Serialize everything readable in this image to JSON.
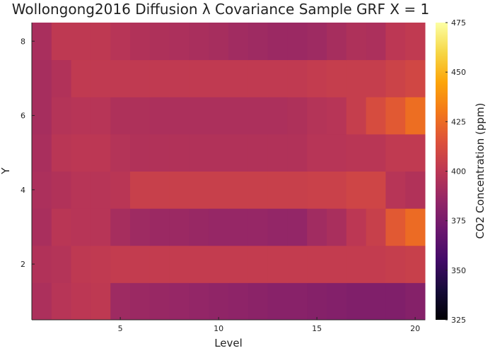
{
  "chart_data": {
    "type": "heatmap",
    "title": "Wollongong2016 Diffusion λ Covariance Sample GRF X = 1",
    "xlabel": "Level",
    "ylabel": "Y",
    "colorbar_label": "CO2 Concentration (ppm)",
    "colormap": "inferno",
    "color_range": [
      325,
      475
    ],
    "colorbar_ticks": [
      325,
      350,
      375,
      400,
      425,
      450,
      475
    ],
    "x_ticks": [
      5,
      10,
      15,
      20
    ],
    "y_ticks": [
      2,
      4,
      6,
      8
    ],
    "x": [
      1,
      2,
      3,
      4,
      5,
      6,
      7,
      8,
      9,
      10,
      11,
      12,
      13,
      14,
      15,
      16,
      17,
      18,
      19,
      20
    ],
    "y": [
      1,
      2,
      3,
      4,
      5,
      6,
      7,
      8
    ],
    "z": [
      [
        394,
        398,
        400,
        401,
        389,
        388,
        387,
        386,
        385,
        384,
        383,
        382,
        381,
        381,
        380,
        379,
        378,
        378,
        378,
        380
      ],
      [
        396,
        397,
        401,
        402,
        403,
        403,
        403,
        403,
        403,
        403,
        403,
        403,
        403,
        403,
        403,
        403,
        403,
        403,
        404,
        405
      ],
      [
        393,
        399,
        398,
        398,
        392,
        389,
        388,
        388,
        387,
        386,
        386,
        386,
        385,
        385,
        390,
        393,
        400,
        405,
        418,
        425
      ],
      [
        394,
        396,
        398,
        398,
        399,
        405,
        405,
        405,
        405,
        405,
        405,
        405,
        405,
        405,
        406,
        406,
        408,
        408,
        398,
        396
      ],
      [
        393,
        399,
        400,
        400,
        397,
        396,
        396,
        396,
        396,
        396,
        396,
        396,
        396,
        396,
        398,
        398,
        399,
        399,
        402,
        402
      ],
      [
        392,
        397,
        398,
        398,
        395,
        395,
        394,
        394,
        394,
        394,
        394,
        394,
        394,
        395,
        397,
        398,
        404,
        412,
        418,
        426
      ],
      [
        392,
        396,
        402,
        402,
        402,
        402,
        402,
        402,
        402,
        402,
        402,
        402,
        402,
        402,
        403,
        404,
        404,
        404,
        407,
        409
      ],
      [
        393,
        401,
        401,
        401,
        398,
        396,
        395,
        394,
        393,
        392,
        390,
        389,
        388,
        388,
        389,
        392,
        395,
        394,
        400,
        402
      ]
    ]
  }
}
